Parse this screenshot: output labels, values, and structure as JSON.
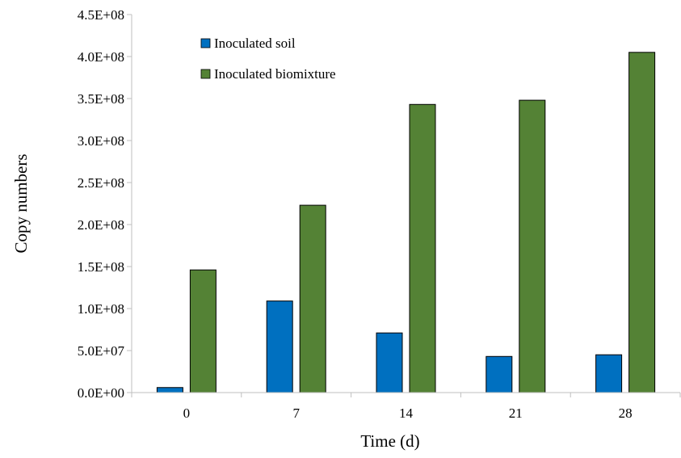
{
  "chart_data": {
    "type": "bar",
    "title": "",
    "xlabel": "Time (d)",
    "ylabel": "Copy numbers",
    "categories": [
      "0",
      "7",
      "14",
      "21",
      "28"
    ],
    "series": [
      {
        "name": "Inoculated soil",
        "color": "#0070C0",
        "values": [
          6000000,
          109000000,
          71000000,
          43000000,
          45000000
        ]
      },
      {
        "name": "Inoculated biomixture",
        "color": "#548235",
        "values": [
          146000000,
          223000000,
          343000000,
          348000000,
          405000000
        ]
      }
    ],
    "ylim": [
      0,
      450000000
    ],
    "yticks": [
      {
        "value": 0,
        "label": "0.0E+00"
      },
      {
        "value": 50000000,
        "label": "5.0E+07"
      },
      {
        "value": 100000000,
        "label": "1.0E+08"
      },
      {
        "value": 150000000,
        "label": "1.5E+08"
      },
      {
        "value": 200000000,
        "label": "2.0E+08"
      },
      {
        "value": 250000000,
        "label": "2.5E+08"
      },
      {
        "value": 300000000,
        "label": "3.0E+08"
      },
      {
        "value": 350000000,
        "label": "3.5E+08"
      },
      {
        "value": 400000000,
        "label": "4.0E+08"
      },
      {
        "value": 450000000,
        "label": "4.5E+08"
      }
    ],
    "grid": false,
    "legend_position": "top-left"
  }
}
